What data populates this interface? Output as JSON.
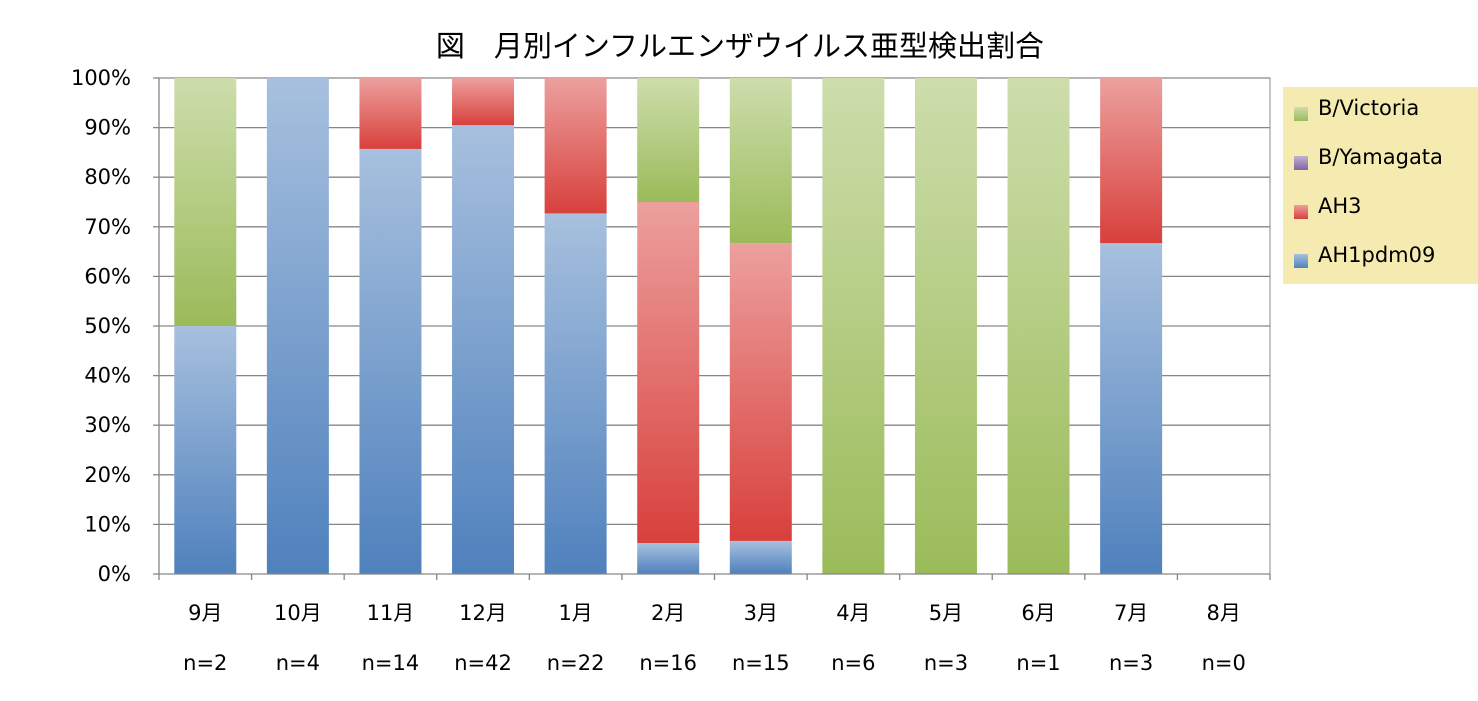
{
  "chart_data": {
    "type": "bar",
    "stacked": true,
    "percent": true,
    "title": "図　月別インフルエンザウイルス亜型検出割合",
    "categories": [
      "9月",
      "10月",
      "11月",
      "12月",
      "1月",
      "2月",
      "3月",
      "4月",
      "5月",
      "6月",
      "7月",
      "8月"
    ],
    "sample_sizes": [
      "n=2",
      "n=4",
      "n=14",
      "n=42",
      "n=22",
      "n=16",
      "n=15",
      "n=6",
      "n=3",
      "n=1",
      "n=3",
      "n=0"
    ],
    "yticks": [
      "0%",
      "10%",
      "20%",
      "30%",
      "40%",
      "50%",
      "60%",
      "70%",
      "80%",
      "90%",
      "100%"
    ],
    "ylim": [
      0,
      100
    ],
    "grid": true,
    "legend_position": "right",
    "series": [
      {
        "name": "AH1pdm09",
        "color": "#4F81BD",
        "values": [
          50,
          100,
          85.7,
          90.5,
          72.7,
          6.25,
          6.67,
          0,
          0,
          0,
          66.7,
          0
        ]
      },
      {
        "name": "AH3",
        "color": "#D8403C",
        "values": [
          0,
          0,
          14.3,
          9.5,
          27.3,
          68.75,
          60,
          0,
          0,
          0,
          33.3,
          0
        ]
      },
      {
        "name": "B/Yamagata",
        "color": "#8064A2",
        "values": [
          0,
          0,
          0,
          0,
          0,
          0,
          0,
          0,
          0,
          0,
          0,
          0
        ]
      },
      {
        "name": "B/Victoria",
        "color": "#9BBB59",
        "values": [
          50,
          0,
          0,
          0,
          0,
          25,
          33.33,
          100,
          100,
          100,
          0,
          0
        ]
      }
    ],
    "legend_order": [
      "B/Victoria",
      "B/Yamagata",
      "AH3",
      "AH1pdm09"
    ]
  }
}
